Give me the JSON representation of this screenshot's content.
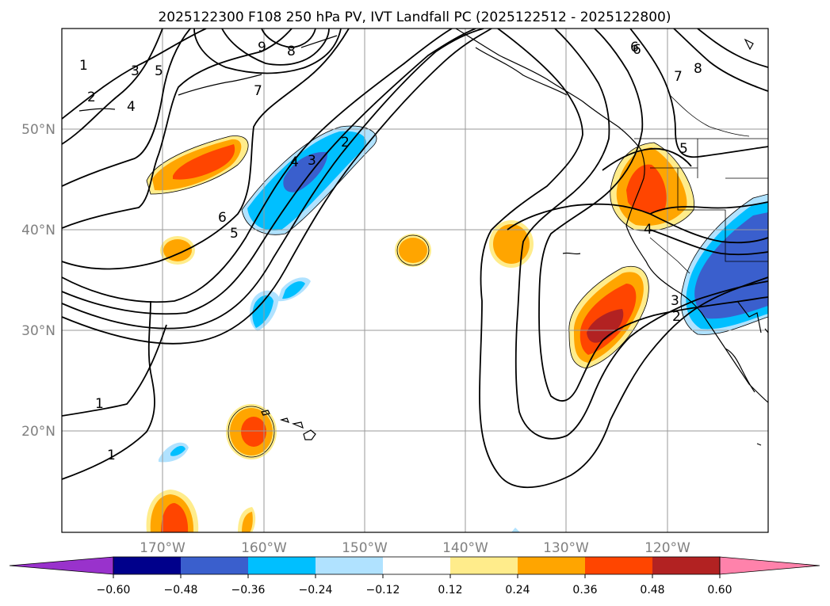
{
  "title": "2025122300 F108 250 hPa PV, IVT Landfall PC (2025122512 - 2025122800)",
  "lat_labels": [
    "50°N",
    "40°N",
    "30°N",
    "20°N"
  ],
  "lon_labels": [
    "170°W",
    "160°W",
    "150°W",
    "140°W",
    "130°W",
    "120°W"
  ],
  "colorbar": {
    "colors": [
      "#9932cc",
      "#00008b",
      "#3a5fcd",
      "#00bfff",
      "#b0e2ff",
      "#ffffff",
      "#ffec8b",
      "#ffa500",
      "#ff4500",
      "#b22222",
      "#ff82ab"
    ],
    "tick_labels": [
      "−0.60",
      "−0.48",
      "−0.36",
      "−0.24",
      "−0.12",
      "0.12",
      "0.24",
      "0.36",
      "0.48",
      "0.60"
    ]
  },
  "contour_labels": [
    "1",
    "2",
    "3",
    "4",
    "5",
    "6",
    "7",
    "8",
    "9",
    "1",
    "1",
    "5",
    "6",
    "4",
    "3",
    "2",
    "6",
    "7",
    "8",
    "5",
    "4",
    "3",
    "2"
  ]
}
